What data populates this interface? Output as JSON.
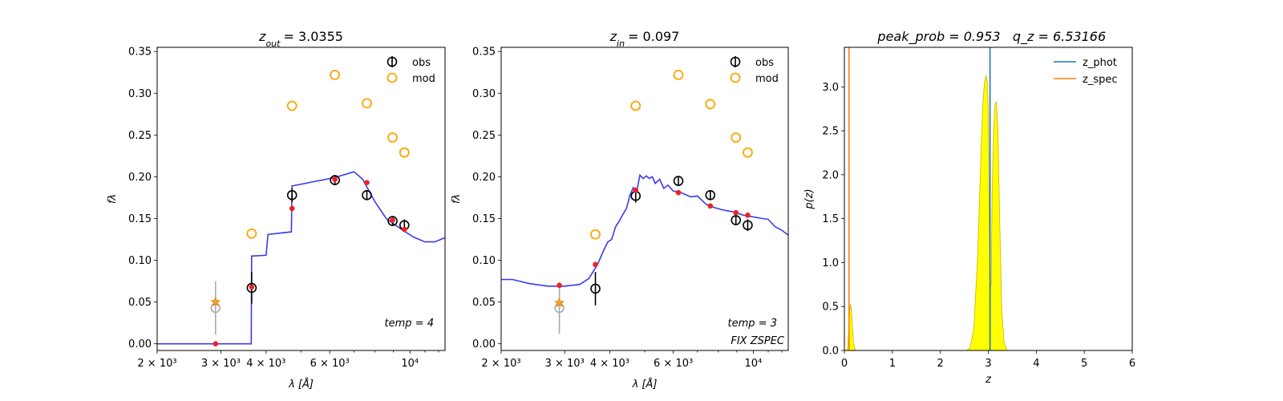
{
  "chart_data": [
    {
      "type": "scatter",
      "title": "z_out = 3.0355",
      "title_var": "z",
      "title_sub": "out",
      "title_value": "= 3.0355",
      "xlabel": "λ [Å]",
      "ylabel": "fλ",
      "xscale": "log",
      "xlim": [
        2000,
        12500
      ],
      "ylim": [
        -0.008,
        0.355
      ],
      "xticks": [
        {
          "value": 2000,
          "label": "2 × 10³"
        },
        {
          "value": 3000,
          "label": "3 × 10³"
        },
        {
          "value": 4000,
          "label": "4 × 10³"
        },
        {
          "value": 6000,
          "label": "6 × 10³"
        },
        {
          "value": 10000,
          "label": "10⁴"
        }
      ],
      "yticks": [
        "0.00",
        "0.05",
        "0.10",
        "0.15",
        "0.20",
        "0.25",
        "0.30",
        "0.35"
      ],
      "legend": {
        "position": "top-right",
        "entries": [
          "obs",
          "mod"
        ]
      },
      "annotation": "temp = 4",
      "annotation2": "",
      "model_line": [
        [
          2000,
          0.0
        ],
        [
          3640,
          0.0
        ],
        [
          3650,
          0.105
        ],
        [
          4000,
          0.106
        ],
        [
          4050,
          0.131
        ],
        [
          4700,
          0.134
        ],
        [
          4720,
          0.189
        ],
        [
          6200,
          0.199
        ],
        [
          7000,
          0.206
        ],
        [
          7400,
          0.197
        ],
        [
          8000,
          0.17
        ],
        [
          8600,
          0.15
        ],
        [
          9400,
          0.138
        ],
        [
          10200,
          0.128
        ],
        [
          11000,
          0.122
        ],
        [
          11700,
          0.122
        ],
        [
          12500,
          0.127
        ]
      ],
      "obs": [
        {
          "x": 3650,
          "y": 0.067,
          "err": 0.019
        },
        {
          "x": 4720,
          "y": 0.178,
          "err": 0.008
        },
        {
          "x": 6200,
          "y": 0.196,
          "err": 0.006
        },
        {
          "x": 7600,
          "y": 0.178,
          "err": 0.006
        },
        {
          "x": 8950,
          "y": 0.147,
          "err": 0.005
        },
        {
          "x": 9650,
          "y": 0.142,
          "err": 0.007
        }
      ],
      "obs_grey": [
        {
          "x": 2900,
          "y": 0.043,
          "err": 0.032
        }
      ],
      "mod": [
        {
          "x": 3650,
          "y": 0.132
        },
        {
          "x": 4720,
          "y": 0.285
        },
        {
          "x": 6200,
          "y": 0.322
        },
        {
          "x": 7600,
          "y": 0.288
        },
        {
          "x": 8950,
          "y": 0.247
        },
        {
          "x": 9650,
          "y": 0.229
        }
      ],
      "red_points": [
        {
          "x": 2900,
          "y": 0.0
        },
        {
          "x": 3650,
          "y": 0.068
        },
        {
          "x": 4720,
          "y": 0.162
        },
        {
          "x": 6200,
          "y": 0.197
        },
        {
          "x": 7600,
          "y": 0.193
        },
        {
          "x": 8950,
          "y": 0.148
        },
        {
          "x": 9650,
          "y": 0.137
        }
      ],
      "star": {
        "x": 2900,
        "y": 0.05
      }
    },
    {
      "type": "scatter",
      "title": "z_in = 0.097",
      "title_var": "z",
      "title_sub": "in",
      "title_value": "= 0.097",
      "xlabel": "λ [Å]",
      "ylabel": "fλ",
      "xscale": "log",
      "xlim": [
        2000,
        12500
      ],
      "ylim": [
        -0.008,
        0.355
      ],
      "xticks": [
        {
          "value": 2000,
          "label": "2 × 10³"
        },
        {
          "value": 3000,
          "label": "3 × 10³"
        },
        {
          "value": 4000,
          "label": "4 × 10³"
        },
        {
          "value": 6000,
          "label": "6 × 10³"
        },
        {
          "value": 10000,
          "label": "10⁴"
        }
      ],
      "yticks": [
        "0.00",
        "0.05",
        "0.10",
        "0.15",
        "0.20",
        "0.25",
        "0.30",
        "0.35"
      ],
      "legend": {
        "position": "top-right",
        "entries": [
          "obs",
          "mod"
        ]
      },
      "annotation": "temp = 3",
      "annotation2": "FIX ZSPEC",
      "model_line": [
        [
          2000,
          0.077
        ],
        [
          2150,
          0.077
        ],
        [
          2400,
          0.072
        ],
        [
          2700,
          0.069
        ],
        [
          3000,
          0.069
        ],
        [
          3300,
          0.071
        ],
        [
          3500,
          0.078
        ],
        [
          3700,
          0.095
        ],
        [
          3850,
          0.112
        ],
        [
          3950,
          0.122
        ],
        [
          4050,
          0.125
        ],
        [
          4150,
          0.14
        ],
        [
          4250,
          0.147
        ],
        [
          4350,
          0.155
        ],
        [
          4450,
          0.162
        ],
        [
          4550,
          0.178
        ],
        [
          4650,
          0.187
        ],
        [
          4750,
          0.182
        ],
        [
          4850,
          0.202
        ],
        [
          4950,
          0.198
        ],
        [
          5050,
          0.201
        ],
        [
          5150,
          0.198
        ],
        [
          5250,
          0.2
        ],
        [
          5350,
          0.192
        ],
        [
          5500,
          0.197
        ],
        [
          5650,
          0.186
        ],
        [
          5800,
          0.19
        ],
        [
          6000,
          0.183
        ],
        [
          6300,
          0.181
        ],
        [
          6700,
          0.176
        ],
        [
          7000,
          0.177
        ],
        [
          7400,
          0.167
        ],
        [
          7800,
          0.163
        ],
        [
          8300,
          0.16
        ],
        [
          8800,
          0.158
        ],
        [
          9400,
          0.154
        ],
        [
          10000,
          0.152
        ],
        [
          10600,
          0.15
        ],
        [
          11000,
          0.149
        ],
        [
          11500,
          0.14
        ],
        [
          12000,
          0.136
        ],
        [
          12500,
          0.13
        ]
      ],
      "obs": [
        {
          "x": 3650,
          "y": 0.066,
          "err": 0.02
        },
        {
          "x": 4720,
          "y": 0.177,
          "err": 0.008
        },
        {
          "x": 6200,
          "y": 0.195,
          "err": 0.006
        },
        {
          "x": 7600,
          "y": 0.178,
          "err": 0.006
        },
        {
          "x": 8950,
          "y": 0.148,
          "err": 0.005
        },
        {
          "x": 9650,
          "y": 0.142,
          "err": 0.007
        }
      ],
      "obs_grey": [
        {
          "x": 2900,
          "y": 0.043,
          "err": 0.031
        }
      ],
      "mod": [
        {
          "x": 3650,
          "y": 0.131
        },
        {
          "x": 4720,
          "y": 0.285
        },
        {
          "x": 6200,
          "y": 0.322
        },
        {
          "x": 7600,
          "y": 0.287
        },
        {
          "x": 8950,
          "y": 0.247
        },
        {
          "x": 9650,
          "y": 0.229
        }
      ],
      "red_points": [
        {
          "x": 2900,
          "y": 0.07
        },
        {
          "x": 3650,
          "y": 0.095
        },
        {
          "x": 4720,
          "y": 0.184
        },
        {
          "x": 6200,
          "y": 0.181
        },
        {
          "x": 7600,
          "y": 0.165
        },
        {
          "x": 8950,
          "y": 0.157
        },
        {
          "x": 9650,
          "y": 0.154
        }
      ],
      "star": {
        "x": 2900,
        "y": 0.049
      }
    },
    {
      "type": "area",
      "title": "peak_prob = 0.953    q_z = 6.53166",
      "title_left": "peak_prob = 0.953",
      "title_right": "q_z = 6.53166",
      "xlabel": "z",
      "ylabel": "p(z)",
      "xlim": [
        0,
        6
      ],
      "ylim": [
        0,
        3.45
      ],
      "xticks": [
        "0",
        "1",
        "2",
        "3",
        "4",
        "5",
        "6"
      ],
      "yticks": [
        "0.0",
        "0.5",
        "1.0",
        "1.5",
        "2.0",
        "2.5",
        "3.0"
      ],
      "legend": {
        "position": "top-right",
        "entries": [
          "z_phot",
          "z_spec"
        ]
      },
      "colors": {
        "z_phot": "#1f77b4",
        "z_spec": "#ff7f0e",
        "fill": "#ffff00"
      },
      "z_phot": 3.0355,
      "z_spec": 0.097,
      "pz": [
        [
          0.0,
          0.0
        ],
        [
          0.04,
          0.0
        ],
        [
          0.07,
          0.04
        ],
        [
          0.09,
          0.25
        ],
        [
          0.11,
          0.45
        ],
        [
          0.13,
          0.53
        ],
        [
          0.15,
          0.45
        ],
        [
          0.17,
          0.25
        ],
        [
          0.19,
          0.08
        ],
        [
          0.22,
          0.01
        ],
        [
          0.25,
          0.0
        ],
        [
          2.55,
          0.0
        ],
        [
          2.62,
          0.03
        ],
        [
          2.7,
          0.25
        ],
        [
          2.78,
          1.1
        ],
        [
          2.84,
          2.1
        ],
        [
          2.88,
          2.75
        ],
        [
          2.92,
          3.05
        ],
        [
          2.95,
          3.13
        ],
        [
          2.98,
          3.05
        ],
        [
          3.0,
          2.7
        ],
        [
          3.02,
          1.5
        ],
        [
          3.04,
          0.7
        ],
        [
          3.06,
          0.75
        ],
        [
          3.08,
          1.8
        ],
        [
          3.11,
          2.5
        ],
        [
          3.14,
          2.8
        ],
        [
          3.17,
          2.83
        ],
        [
          3.2,
          2.5
        ],
        [
          3.24,
          1.4
        ],
        [
          3.28,
          0.45
        ],
        [
          3.33,
          0.08
        ],
        [
          3.4,
          0.0
        ],
        [
          6.0,
          0.0
        ]
      ]
    }
  ]
}
